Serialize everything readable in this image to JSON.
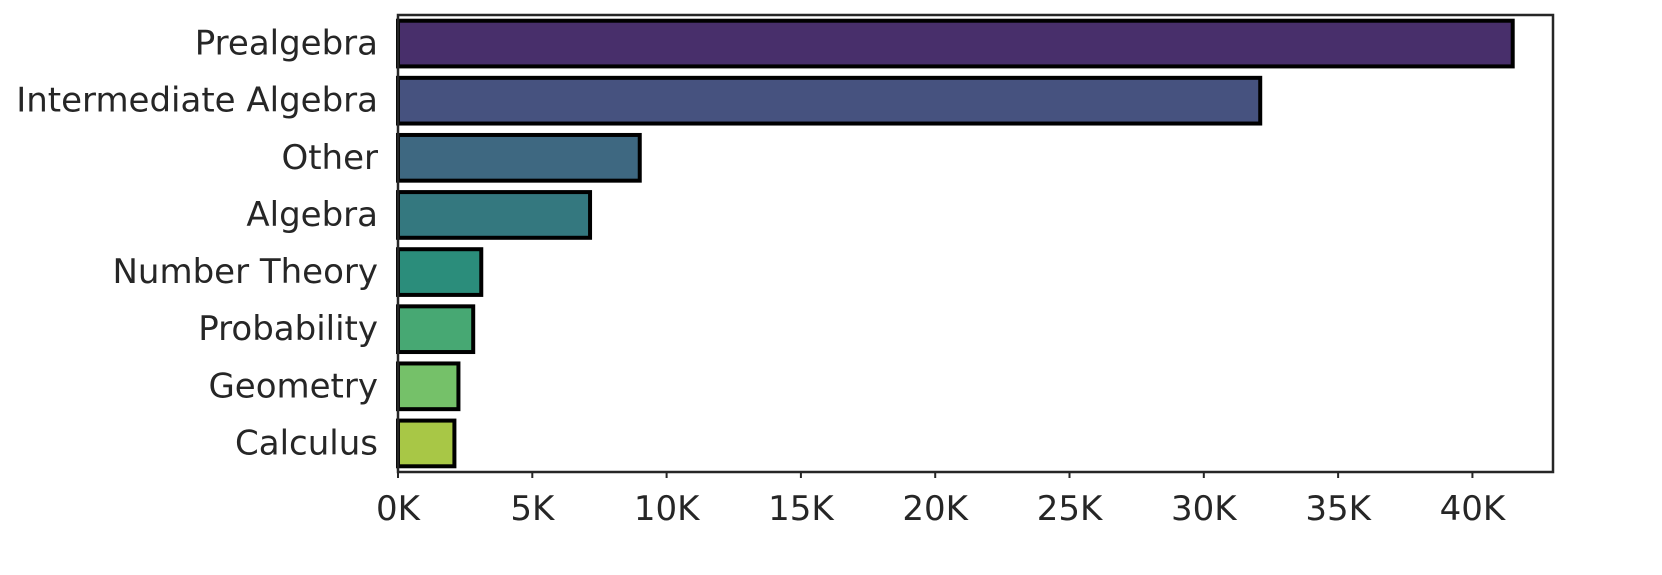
{
  "chart_data": {
    "type": "bar",
    "orientation": "horizontal",
    "title": "",
    "xlabel": "",
    "ylabel": "",
    "categories": [
      "Prealgebra",
      "Intermediate Algebra",
      "Other",
      "Algebra",
      "Number Theory",
      "Probability",
      "Geometry",
      "Calculus"
    ],
    "values": [
      41500,
      32100,
      9000,
      7150,
      3100,
      2800,
      2250,
      2100
    ],
    "colors": [
      "#482f6b",
      "#46527f",
      "#3e6881",
      "#34787f",
      "#2b8d7b",
      "#47a873",
      "#75c169",
      "#a8c746"
    ],
    "xlim": [
      0,
      43000
    ],
    "xticks": [
      0,
      5000,
      10000,
      15000,
      20000,
      25000,
      30000,
      35000,
      40000
    ],
    "xtick_labels": [
      "0K",
      "5K",
      "10K",
      "15K",
      "20K",
      "25K",
      "30K",
      "35K",
      "40K"
    ],
    "grid": false,
    "legend": "none"
  }
}
